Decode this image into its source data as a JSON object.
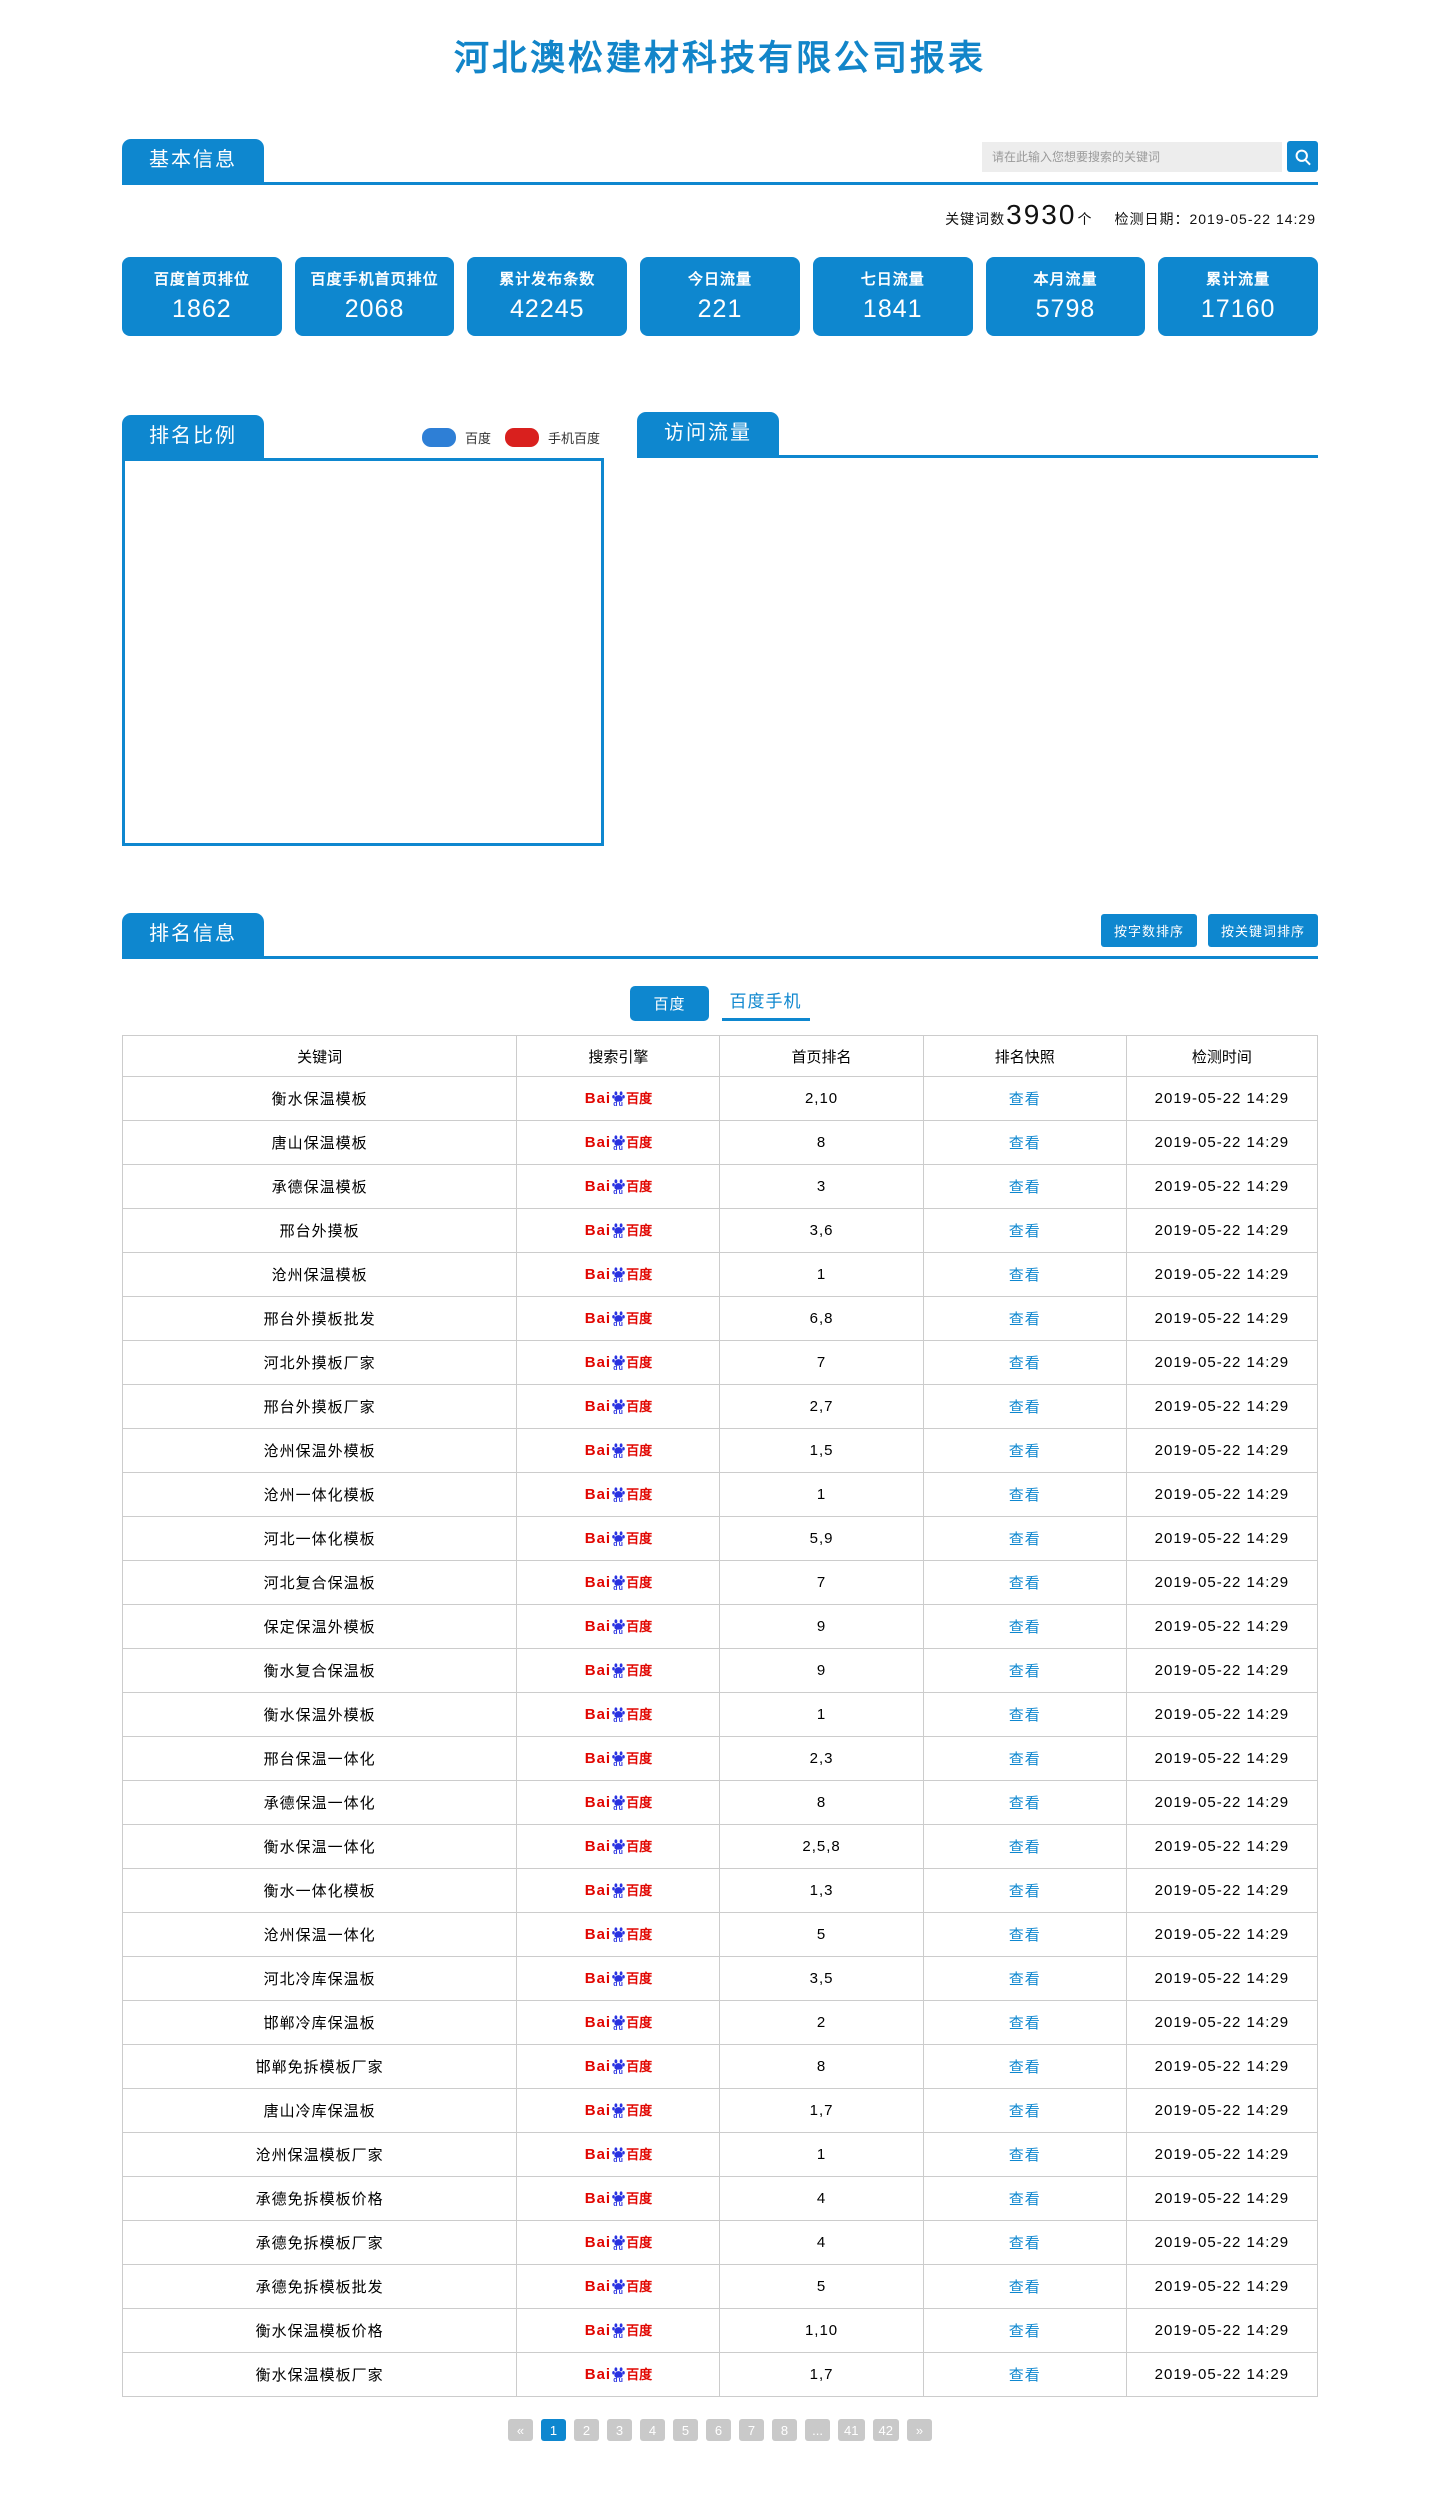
{
  "page": {
    "title": "河北澳松建材科技有限公司报表"
  },
  "basic_info": {
    "section_title": "基本信息",
    "search": {
      "placeholder": "请在此输入您想要搜索的关键词",
      "icon": "search-icon"
    },
    "keyword_stats": {
      "label": "关键词数",
      "count": "3930",
      "unit": "个",
      "date_label": "检测日期：",
      "date": "2019-05-22 14:29"
    },
    "stat_cards": [
      {
        "label": "百度首页排位",
        "value": "1862"
      },
      {
        "label": "百度手机首页排位",
        "value": "2068"
      },
      {
        "label": "累计发布条数",
        "value": "42245"
      },
      {
        "label": "今日流量",
        "value": "221"
      },
      {
        "label": "七日流量",
        "value": "1841"
      },
      {
        "label": "本月流量",
        "value": "5798"
      },
      {
        "label": "累计流量",
        "value": "17160"
      }
    ]
  },
  "ranking_ratio": {
    "section_title": "排名比例",
    "legend": [
      {
        "label": "百度",
        "color": "#2e7fd6"
      },
      {
        "label": "手机百度",
        "color": "#d9201e"
      }
    ]
  },
  "traffic": {
    "section_title": "访问流量"
  },
  "ranking_info": {
    "section_title": "排名信息",
    "sort_buttons": [
      "按字数排序",
      "按关键词排序"
    ],
    "tabs": {
      "active_label": "百度",
      "inactive_label": "百度手机"
    },
    "table": {
      "headers": [
        "关键词",
        "搜索引擎",
        "首页排名",
        "排名快照",
        "检测时间"
      ],
      "engine_logo": {
        "prefix": "Bai",
        "du": "du",
        "suffix": "百度"
      },
      "view_label": "查看",
      "rows": [
        {
          "keyword": "衡水保温模板",
          "rank": "2,10",
          "time": "2019-05-22 14:29"
        },
        {
          "keyword": "唐山保温模板",
          "rank": "8",
          "time": "2019-05-22 14:29"
        },
        {
          "keyword": "承德保温模板",
          "rank": "3",
          "time": "2019-05-22 14:29"
        },
        {
          "keyword": "邢台外摸板",
          "rank": "3,6",
          "time": "2019-05-22 14:29"
        },
        {
          "keyword": "沧州保温模板",
          "rank": "1",
          "time": "2019-05-22 14:29"
        },
        {
          "keyword": "邢台外摸板批发",
          "rank": "6,8",
          "time": "2019-05-22 14:29"
        },
        {
          "keyword": "河北外摸板厂家",
          "rank": "7",
          "time": "2019-05-22 14:29"
        },
        {
          "keyword": "邢台外摸板厂家",
          "rank": "2,7",
          "time": "2019-05-22 14:29"
        },
        {
          "keyword": "沧州保温外模板",
          "rank": "1,5",
          "time": "2019-05-22 14:29"
        },
        {
          "keyword": "沧州一体化模板",
          "rank": "1",
          "time": "2019-05-22 14:29"
        },
        {
          "keyword": "河北一体化模板",
          "rank": "5,9",
          "time": "2019-05-22 14:29"
        },
        {
          "keyword": "河北复合保温板",
          "rank": "7",
          "time": "2019-05-22 14:29"
        },
        {
          "keyword": "保定保温外模板",
          "rank": "9",
          "time": "2019-05-22 14:29"
        },
        {
          "keyword": "衡水复合保温板",
          "rank": "9",
          "time": "2019-05-22 14:29"
        },
        {
          "keyword": "衡水保温外模板",
          "rank": "1",
          "time": "2019-05-22 14:29"
        },
        {
          "keyword": "邢台保温一体化",
          "rank": "2,3",
          "time": "2019-05-22 14:29"
        },
        {
          "keyword": "承德保温一体化",
          "rank": "8",
          "time": "2019-05-22 14:29"
        },
        {
          "keyword": "衡水保温一体化",
          "rank": "2,5,8",
          "time": "2019-05-22 14:29"
        },
        {
          "keyword": "衡水一体化模板",
          "rank": "1,3",
          "time": "2019-05-22 14:29"
        },
        {
          "keyword": "沧州保温一体化",
          "rank": "5",
          "time": "2019-05-22 14:29"
        },
        {
          "keyword": "河北冷库保温板",
          "rank": "3,5",
          "time": "2019-05-22 14:29"
        },
        {
          "keyword": "邯郸冷库保温板",
          "rank": "2",
          "time": "2019-05-22 14:29"
        },
        {
          "keyword": "邯郸免拆模板厂家",
          "rank": "8",
          "time": "2019-05-22 14:29"
        },
        {
          "keyword": "唐山冷库保温板",
          "rank": "1,7",
          "time": "2019-05-22 14:29"
        },
        {
          "keyword": "沧州保温模板厂家",
          "rank": "1",
          "time": "2019-05-22 14:29"
        },
        {
          "keyword": "承德免拆模板价格",
          "rank": "4",
          "time": "2019-05-22 14:29"
        },
        {
          "keyword": "承德免拆模板厂家",
          "rank": "4",
          "time": "2019-05-22 14:29"
        },
        {
          "keyword": "承德免拆模板批发",
          "rank": "5",
          "time": "2019-05-22 14:29"
        },
        {
          "keyword": "衡水保温模板价格",
          "rank": "1,10",
          "time": "2019-05-22 14:29"
        },
        {
          "keyword": "衡水保温模板厂家",
          "rank": "1,7",
          "time": "2019-05-22 14:29"
        }
      ]
    },
    "pagination": {
      "items": [
        "«",
        "1",
        "2",
        "3",
        "4",
        "5",
        "6",
        "7",
        "8",
        "...",
        "41",
        "42",
        "»"
      ],
      "active": "1"
    }
  },
  "colors": {
    "primary": "#0e87cf",
    "legend_baidu": "#2e7fd6",
    "legend_mobile": "#d9201e"
  }
}
